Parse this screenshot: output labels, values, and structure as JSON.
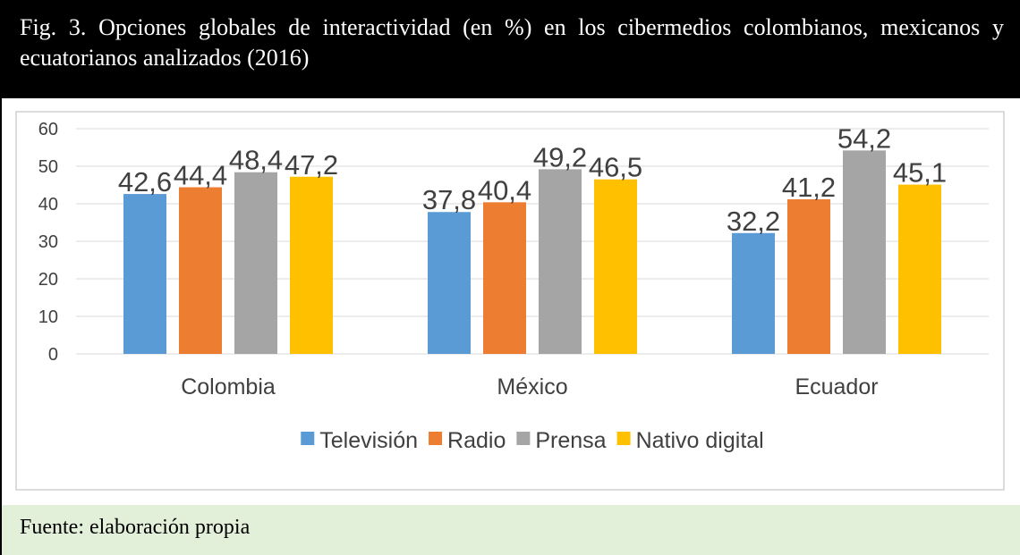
{
  "title": "Fig. 3. Opciones globales de interactividad (en %) en los cibermedios colombianos, mexicanos y ecuatorianos analizados (2016)",
  "chart_data": {
    "type": "bar",
    "categories": [
      "Colombia",
      "México",
      "Ecuador"
    ],
    "series": [
      {
        "name": "Televisión",
        "color": "#5b9bd5",
        "values": [
          42.6,
          37.8,
          32.2
        ],
        "value_labels": [
          "42,6",
          "37,8",
          "32,2"
        ]
      },
      {
        "name": "Radio",
        "color": "#ed7d31",
        "values": [
          44.4,
          40.4,
          41.2
        ],
        "value_labels": [
          "44,4",
          "40,4",
          "41,2"
        ]
      },
      {
        "name": "Prensa",
        "color": "#a5a5a5",
        "values": [
          48.4,
          49.2,
          54.2
        ],
        "value_labels": [
          "48,4",
          "49,2",
          "54,2"
        ]
      },
      {
        "name": "Nativo digital",
        "color": "#ffc000",
        "values": [
          47.2,
          46.5,
          45.1
        ],
        "value_labels": [
          "47,2",
          "46,5",
          "45,1"
        ]
      }
    ],
    "ylim": [
      0,
      60
    ],
    "yticks": [
      0,
      10,
      20,
      30,
      40,
      50,
      60
    ],
    "grid": true,
    "legend": "bottom"
  },
  "source": "Fuente: elaboración propia"
}
